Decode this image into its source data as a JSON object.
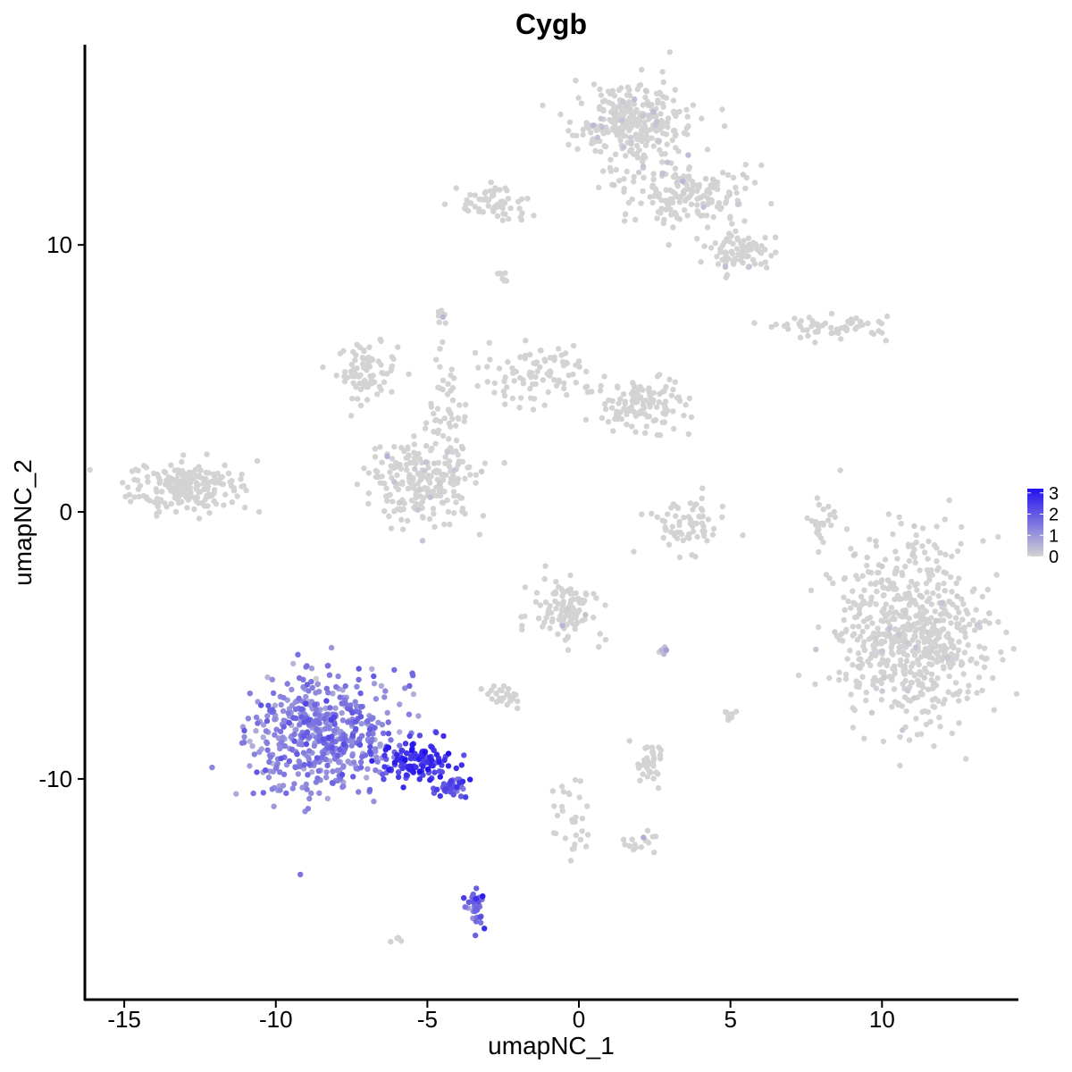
{
  "chart_data": {
    "type": "scatter",
    "title": "Cygb",
    "xlabel": "umapNC_1",
    "ylabel": "umapNC_2",
    "xlim": [
      -16.3,
      14.5
    ],
    "ylim": [
      -18.3,
      17.5
    ],
    "x_ticks": [
      -15,
      -10,
      -5,
      0,
      5,
      10
    ],
    "y_ticks": [
      -10,
      0,
      10
    ],
    "x_tick_labels": [
      "-15",
      "-10",
      "-5",
      "0",
      "5",
      "10"
    ],
    "y_tick_labels": [
      "-10",
      "0",
      "10"
    ],
    "grid": false,
    "legend": {
      "position": "right",
      "type": "colorbar",
      "ticks": [
        0,
        1,
        2,
        3
      ],
      "tick_labels": [
        "0",
        "1",
        "2",
        "3"
      ],
      "color_low": "#d3d3d3",
      "color_high": "#2211ee",
      "range": [
        0,
        3.2
      ]
    },
    "clusters": [
      {
        "cx": -13.0,
        "cy": 1.0,
        "sx": 0.9,
        "sy": 0.5,
        "n": 220,
        "expr_mean": 0.0,
        "expr_sd": 0.0
      },
      {
        "cx": -7.0,
        "cy": 5.3,
        "sx": 0.5,
        "sy": 0.5,
        "n": 80,
        "expr_mean": 0.0,
        "expr_sd": 0.0
      },
      {
        "cx": -5.3,
        "cy": 1.2,
        "sx": 0.9,
        "sy": 0.8,
        "n": 210,
        "expr_mean": 0.05,
        "expr_sd": 0.2
      },
      {
        "cx": -4.3,
        "cy": 3.5,
        "sx": 0.3,
        "sy": 1.2,
        "n": 60,
        "expr_mean": 0.0,
        "expr_sd": 0.0
      },
      {
        "cx": -1.5,
        "cy": 5.0,
        "sx": 1.0,
        "sy": 0.6,
        "n": 90,
        "expr_mean": 0.0,
        "expr_sd": 0.0
      },
      {
        "cx": 2.0,
        "cy": 4.0,
        "sx": 0.8,
        "sy": 0.5,
        "n": 120,
        "expr_mean": 0.0,
        "expr_sd": 0.0
      },
      {
        "cx": 1.8,
        "cy": 14.5,
        "sx": 0.9,
        "sy": 0.8,
        "n": 300,
        "expr_mean": 0.05,
        "expr_sd": 0.2
      },
      {
        "cx": 3.5,
        "cy": 11.8,
        "sx": 1.0,
        "sy": 0.6,
        "n": 160,
        "expr_mean": 0.05,
        "expr_sd": 0.2
      },
      {
        "cx": 5.3,
        "cy": 9.8,
        "sx": 0.5,
        "sy": 0.4,
        "n": 80,
        "expr_mean": 0.05,
        "expr_sd": 0.2
      },
      {
        "cx": -2.8,
        "cy": 11.5,
        "sx": 0.6,
        "sy": 0.4,
        "n": 60,
        "expr_mean": 0.0,
        "expr_sd": 0.0
      },
      {
        "cx": 8.5,
        "cy": 6.9,
        "sx": 0.9,
        "sy": 0.2,
        "n": 60,
        "expr_mean": 0.0,
        "expr_sd": 0.0
      },
      {
        "cx": 11.0,
        "cy": -4.5,
        "sx": 1.2,
        "sy": 1.7,
        "n": 650,
        "expr_mean": 0.02,
        "expr_sd": 0.1
      },
      {
        "cx": 3.5,
        "cy": -0.5,
        "sx": 0.7,
        "sy": 0.5,
        "n": 70,
        "expr_mean": 0.0,
        "expr_sd": 0.0
      },
      {
        "cx": 8.0,
        "cy": -0.5,
        "sx": 0.2,
        "sy": 0.6,
        "n": 25,
        "expr_mean": 0.0,
        "expr_sd": 0.0
      },
      {
        "cx": -0.5,
        "cy": -3.7,
        "sx": 0.5,
        "sy": 0.6,
        "n": 110,
        "expr_mean": 0.1,
        "expr_sd": 0.25
      },
      {
        "cx": -2.5,
        "cy": -6.9,
        "sx": 0.3,
        "sy": 0.2,
        "n": 25,
        "expr_mean": 0.0,
        "expr_sd": 0.0
      },
      {
        "cx": 2.3,
        "cy": -9.5,
        "sx": 0.3,
        "sy": 0.4,
        "n": 35,
        "expr_mean": 0.0,
        "expr_sd": 0.0
      },
      {
        "cx": -0.3,
        "cy": -11.5,
        "sx": 0.3,
        "sy": 0.8,
        "n": 30,
        "expr_mean": 0.0,
        "expr_sd": 0.0
      },
      {
        "cx": 2.2,
        "cy": -12.5,
        "sx": 0.3,
        "sy": 0.3,
        "n": 15,
        "expr_mean": 0.3,
        "expr_sd": 0.3
      },
      {
        "cx": -8.5,
        "cy": -8.3,
        "sx": 1.2,
        "sy": 1.1,
        "n": 520,
        "expr_mean": 1.3,
        "expr_sd": 0.4
      },
      {
        "cx": -5.3,
        "cy": -9.4,
        "sx": 0.6,
        "sy": 0.4,
        "n": 120,
        "expr_mean": 2.6,
        "expr_sd": 0.4
      },
      {
        "cx": -4.2,
        "cy": -10.3,
        "sx": 0.4,
        "sy": 0.2,
        "n": 40,
        "expr_mean": 2.0,
        "expr_sd": 0.4
      },
      {
        "cx": -3.4,
        "cy": -14.8,
        "sx": 0.15,
        "sy": 0.4,
        "n": 35,
        "expr_mean": 1.8,
        "expr_sd": 0.4
      },
      {
        "cx": -2.5,
        "cy": 8.8,
        "sx": 0.1,
        "sy": 0.1,
        "n": 8,
        "expr_mean": 0.3,
        "expr_sd": 0.2
      },
      {
        "cx": -4.5,
        "cy": 7.3,
        "sx": 0.1,
        "sy": 0.2,
        "n": 8,
        "expr_mean": 0.3,
        "expr_sd": 0.2
      },
      {
        "cx": 5.0,
        "cy": -7.5,
        "sx": 0.1,
        "sy": 0.2,
        "n": 8,
        "expr_mean": 0.0,
        "expr_sd": 0.0
      },
      {
        "cx": -6.0,
        "cy": -16.0,
        "sx": 0.1,
        "sy": 0.1,
        "n": 4,
        "expr_mean": 0.0,
        "expr_sd": 0.0
      },
      {
        "cx": 2.7,
        "cy": -5.2,
        "sx": 0.1,
        "sy": 0.1,
        "n": 5,
        "expr_mean": 0.5,
        "expr_sd": 0.3
      }
    ],
    "point_color_scale": {
      "low": "#d3d3d3",
      "high": "#2211ee"
    }
  }
}
